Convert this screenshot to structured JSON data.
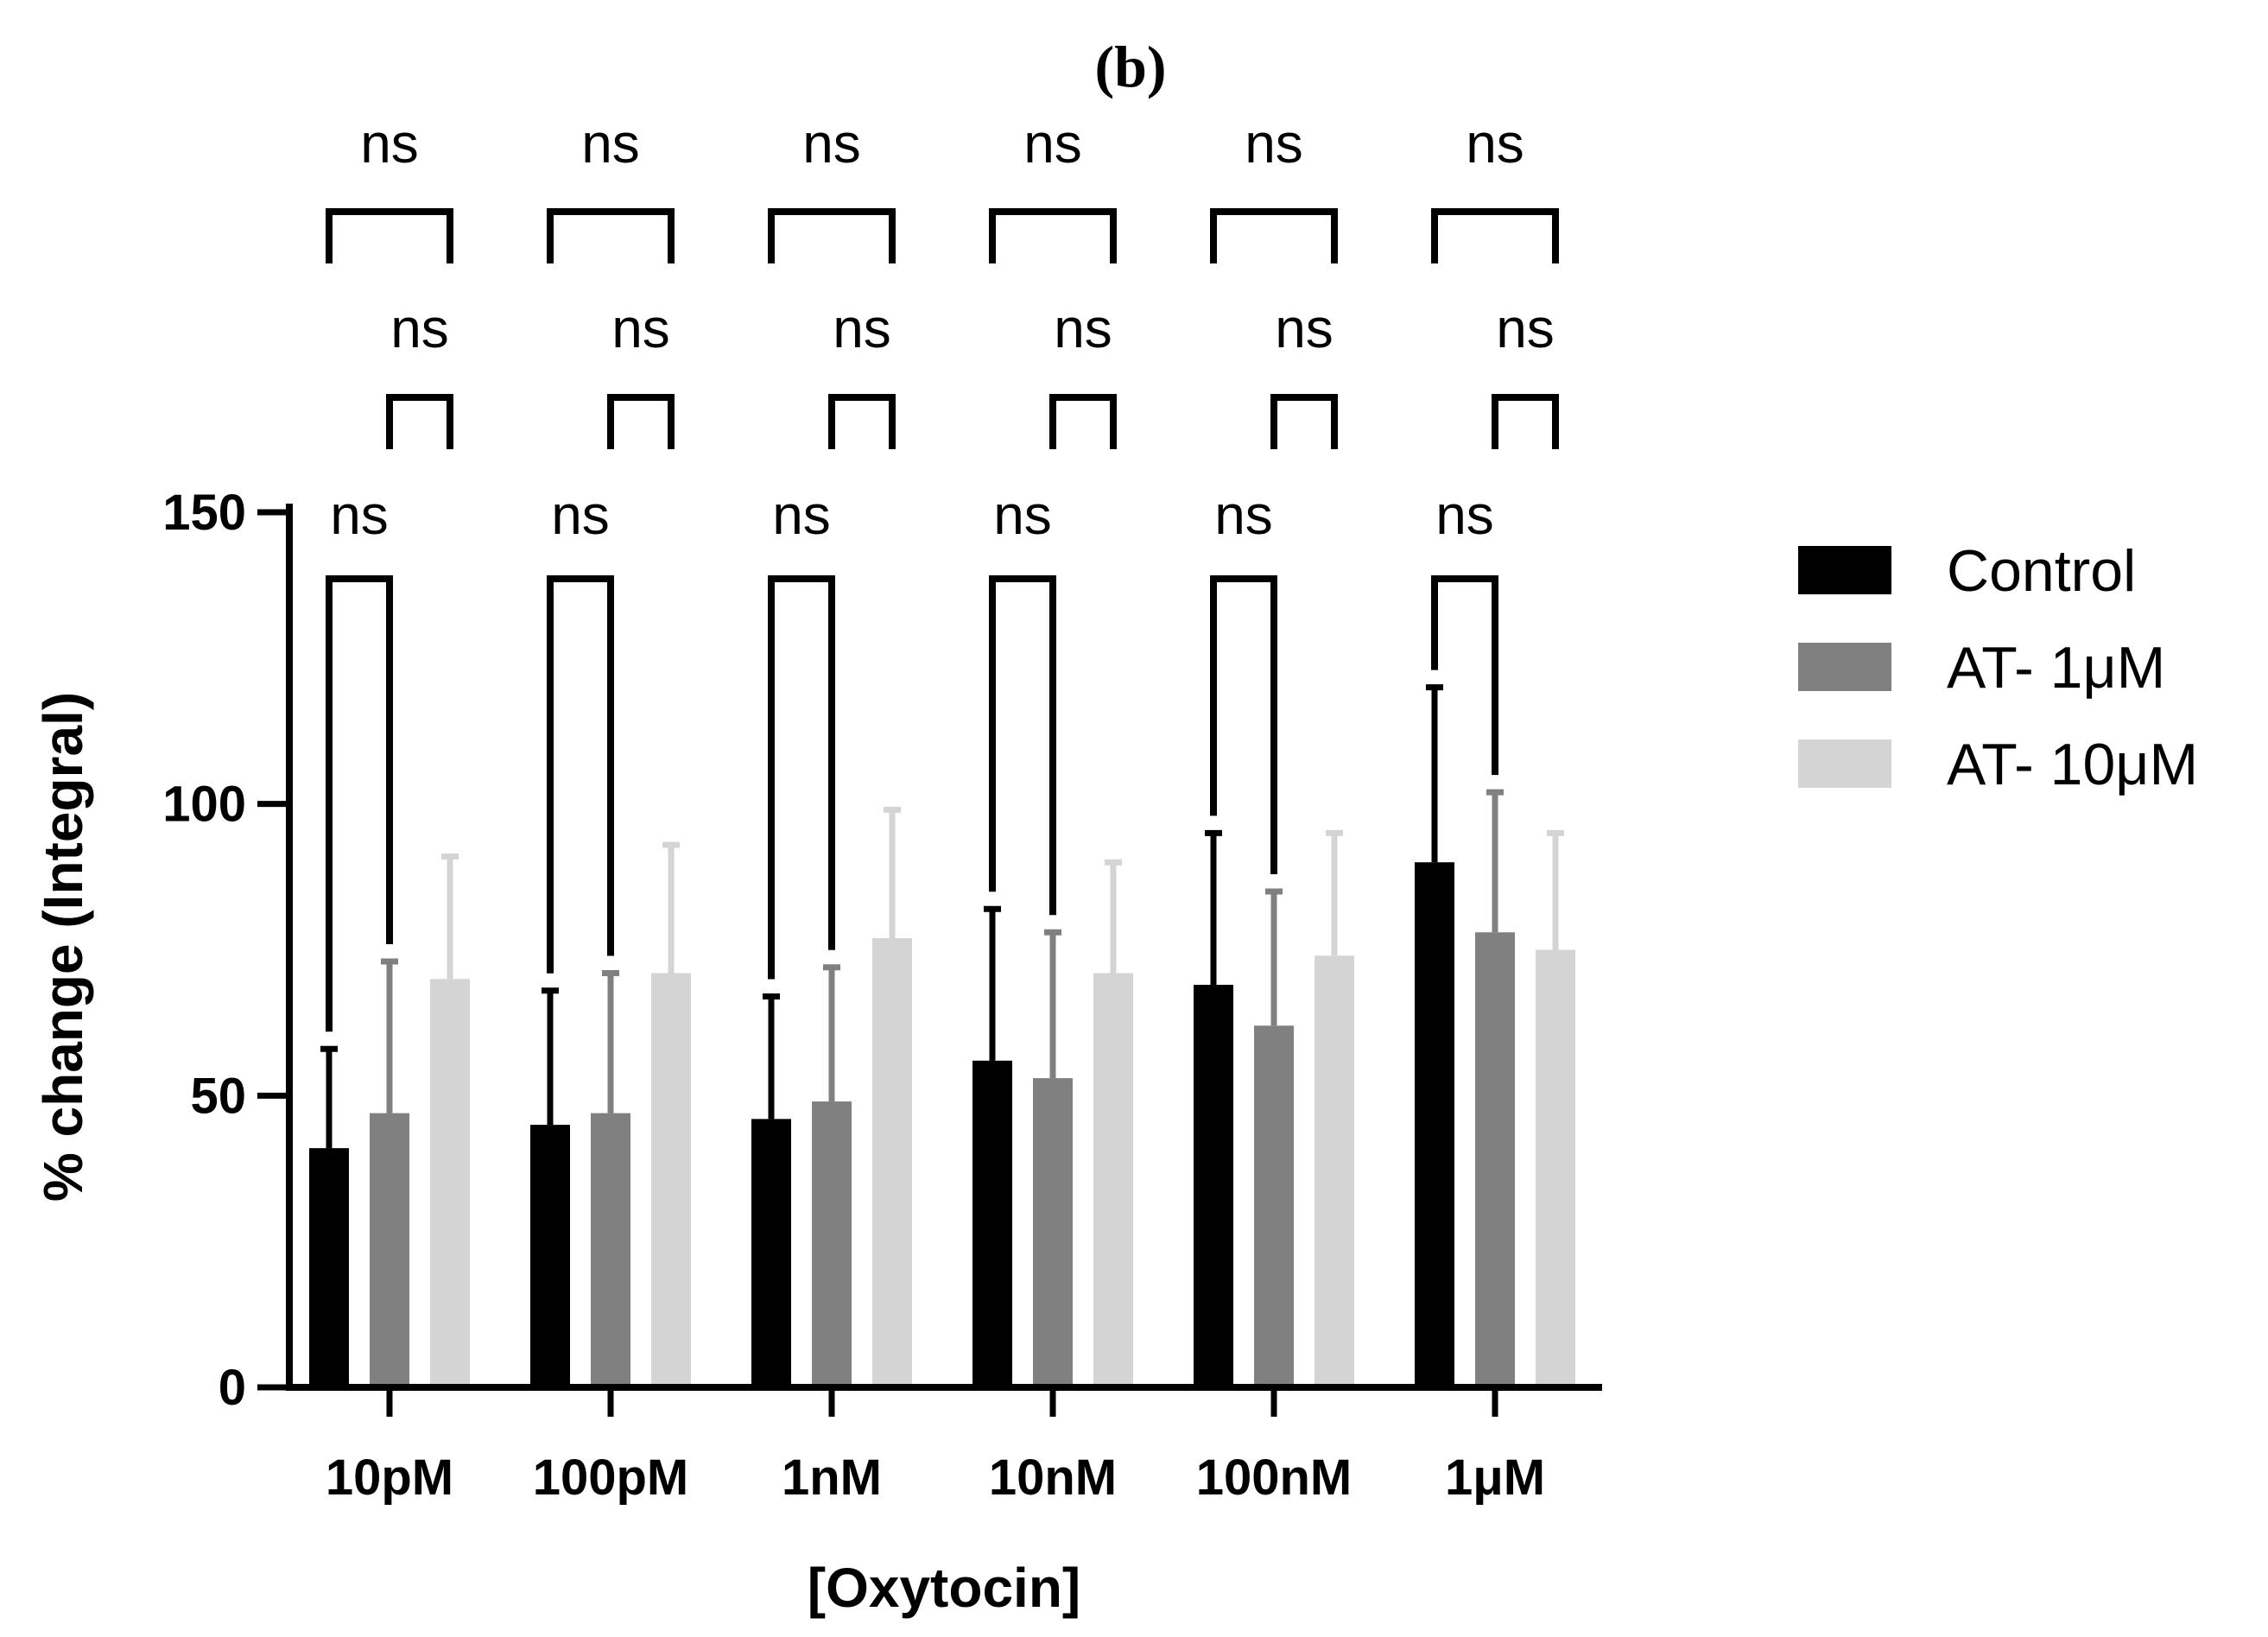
{
  "chart_data": {
    "type": "bar",
    "panel_label": "(b)",
    "xlabel": "[Oxytocin]",
    "ylabel": "% change (Integral)",
    "ylim": [
      0,
      150
    ],
    "yticks": [
      0,
      50,
      100,
      150
    ],
    "categories": [
      "10pM",
      "100pM",
      "1nM",
      "10nM",
      "100nM",
      "1μM"
    ],
    "series": [
      {
        "name": "Control",
        "color": "#000000",
        "values": [
          41,
          45,
          46,
          56,
          69,
          90
        ],
        "errors": [
          17,
          23,
          21,
          26,
          26,
          30
        ]
      },
      {
        "name": "AT- 1μM",
        "color": "#808080",
        "values": [
          47,
          47,
          49,
          53,
          62,
          78
        ],
        "errors": [
          26,
          24,
          23,
          25,
          23,
          24
        ]
      },
      {
        "name": "AT- 10μM",
        "color": "#d4d4d4",
        "values": [
          70,
          71,
          77,
          71,
          74,
          75
        ],
        "errors": [
          21,
          22,
          22,
          19,
          21,
          20
        ]
      }
    ],
    "comparisons": [
      {
        "pair": [
          "Control",
          "AT- 1μM"
        ],
        "label": "ns"
      },
      {
        "pair": [
          "AT- 1μM",
          "AT- 10μM"
        ],
        "label": "ns"
      },
      {
        "pair": [
          "Control",
          "AT- 10μM"
        ],
        "label": "ns"
      }
    ],
    "legend": {
      "position": "right",
      "entries": [
        "Control",
        "AT- 1μM",
        "AT- 10μM"
      ]
    }
  }
}
